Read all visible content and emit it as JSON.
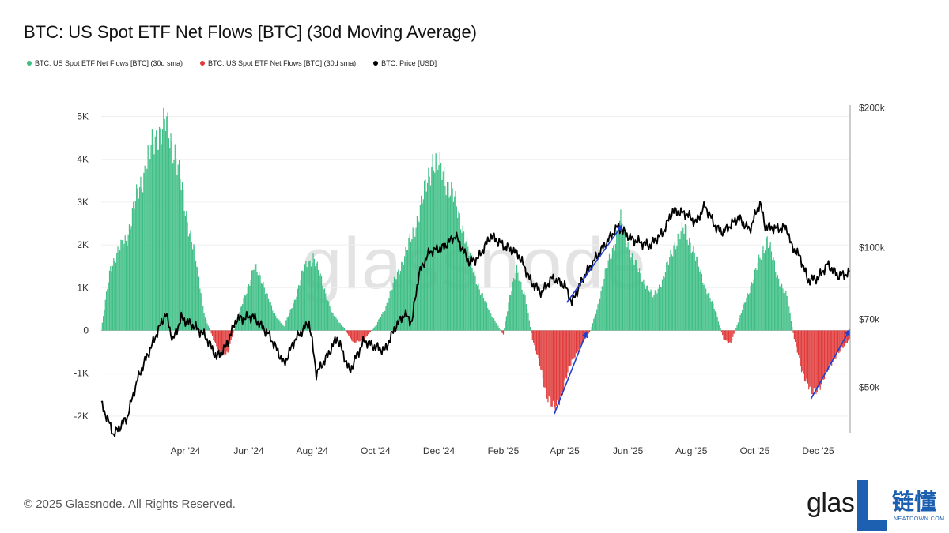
{
  "title": "BTC: US Spot ETF Net Flows [BTC] (30d Moving Average)",
  "legend": [
    {
      "label": "BTC: US Spot ETF Net Flows [BTC] (30d sma)",
      "color": "#3fbf86"
    },
    {
      "label": "BTC: US Spot ETF Net Flows [BTC] (30d sma)",
      "color": "#e03a3a"
    },
    {
      "label": "BTC: Price [USD]",
      "color": "#000000"
    }
  ],
  "watermark": "glassnode",
  "copyright": "© 2025 Glassnode. All Rights Reserved.",
  "brand": {
    "glas": "glas",
    "cn": "链懂",
    "sub": "NEATDOWN.COM"
  },
  "colors": {
    "positive": "#3fbf86",
    "negative": "#e03a3a",
    "price": "#000000",
    "arrow": "#1f3fd1"
  },
  "chart_data": {
    "type": "bar",
    "title": "BTC: US Spot ETF Net Flows [BTC] (30d Moving Average)",
    "x_tick_labels": [
      "Apr '24",
      "Jun '24",
      "Aug '24",
      "Oct '24",
      "Dec '24",
      "Feb '25",
      "Apr '25",
      "Jun '25",
      "Aug '25",
      "Oct '25",
      "Dec '25"
    ],
    "y_left_ticks": [
      "5K",
      "4K",
      "3K",
      "2K",
      "1K",
      "0",
      "-1K",
      "-2K"
    ],
    "y_left_range": [
      -2200,
      5200
    ],
    "y_right_ticks": [
      "$200k",
      "$100k",
      "$70k",
      "$50k"
    ],
    "y_right_scale": "log",
    "x_range": [
      "2024-01-11",
      "2025-12-31"
    ],
    "series": [
      {
        "name": "BTC: US Spot ETF Net Flows [BTC] (30d sma)",
        "kind": "bars",
        "points": [
          [
            "2024-01-11",
            0
          ],
          [
            "2024-01-20",
            1500
          ],
          [
            "2024-02-05",
            2200
          ],
          [
            "2024-02-15",
            3200
          ],
          [
            "2024-02-25",
            4000
          ],
          [
            "2024-03-05",
            4600
          ],
          [
            "2024-03-13",
            4800
          ],
          [
            "2024-03-22",
            4200
          ],
          [
            "2024-04-01",
            2800
          ],
          [
            "2024-04-10",
            1800
          ],
          [
            "2024-04-20",
            300
          ],
          [
            "2024-04-28",
            -200
          ],
          [
            "2024-05-05",
            -600
          ],
          [
            "2024-05-12",
            -500
          ],
          [
            "2024-05-20",
            200
          ],
          [
            "2024-05-31",
            1000
          ],
          [
            "2024-06-06",
            1500
          ],
          [
            "2024-06-15",
            1100
          ],
          [
            "2024-06-25",
            400
          ],
          [
            "2024-07-05",
            100
          ],
          [
            "2024-07-15",
            700
          ],
          [
            "2024-07-25",
            1500
          ],
          [
            "2024-08-02",
            1700
          ],
          [
            "2024-08-10",
            1200
          ],
          [
            "2024-08-20",
            400
          ],
          [
            "2024-09-01",
            50
          ],
          [
            "2024-09-10",
            -300
          ],
          [
            "2024-09-20",
            -200
          ],
          [
            "2024-10-01",
            100
          ],
          [
            "2024-10-10",
            500
          ],
          [
            "2024-10-20",
            1200
          ],
          [
            "2024-10-30",
            1800
          ],
          [
            "2024-11-05",
            2200
          ],
          [
            "2024-11-15",
            3000
          ],
          [
            "2024-11-25",
            4000
          ],
          [
            "2024-12-05",
            3700
          ],
          [
            "2024-12-15",
            3100
          ],
          [
            "2024-12-23",
            2500
          ],
          [
            "2025-01-02",
            1500
          ],
          [
            "2025-01-10",
            900
          ],
          [
            "2025-01-20",
            400
          ],
          [
            "2025-01-27",
            100
          ],
          [
            "2025-02-01",
            -100
          ],
          [
            "2025-02-07",
            800
          ],
          [
            "2025-02-14",
            1400
          ],
          [
            "2025-02-22",
            800
          ],
          [
            "2025-03-01",
            -200
          ],
          [
            "2025-03-08",
            -800
          ],
          [
            "2025-03-15",
            -1500
          ],
          [
            "2025-03-22",
            -1900
          ],
          [
            "2025-03-30",
            -1400
          ],
          [
            "2025-04-08",
            -700
          ],
          [
            "2025-04-18",
            -300
          ],
          [
            "2025-04-26",
            0
          ],
          [
            "2025-05-02",
            500
          ],
          [
            "2025-05-12",
            1500
          ],
          [
            "2025-05-25",
            2550
          ],
          [
            "2025-06-05",
            1700
          ],
          [
            "2025-06-15",
            1200
          ],
          [
            "2025-06-25",
            800
          ],
          [
            "2025-07-05",
            1200
          ],
          [
            "2025-07-15",
            2000
          ],
          [
            "2025-07-26",
            2400
          ],
          [
            "2025-08-05",
            1700
          ],
          [
            "2025-08-15",
            1000
          ],
          [
            "2025-08-25",
            400
          ],
          [
            "2025-09-01",
            -200
          ],
          [
            "2025-09-08",
            -300
          ],
          [
            "2025-09-15",
            200
          ],
          [
            "2025-09-25",
            900
          ],
          [
            "2025-10-05",
            1600
          ],
          [
            "2025-10-13",
            2200
          ],
          [
            "2025-10-22",
            1300
          ],
          [
            "2025-11-01",
            800
          ],
          [
            "2025-11-08",
            -200
          ],
          [
            "2025-11-15",
            -900
          ],
          [
            "2025-11-25",
            -1500
          ],
          [
            "2025-12-05",
            -1200
          ],
          [
            "2025-12-15",
            -700
          ],
          [
            "2025-12-25",
            -400
          ],
          [
            "2025-12-31",
            -200
          ]
        ]
      },
      {
        "name": "BTC: Price [USD]",
        "kind": "line",
        "points": [
          [
            "2024-01-11",
            46000
          ],
          [
            "2024-01-23",
            39500
          ],
          [
            "2024-02-05",
            43000
          ],
          [
            "2024-02-15",
            52000
          ],
          [
            "2024-02-28",
            61000
          ],
          [
            "2024-03-13",
            72000
          ],
          [
            "2024-03-20",
            63000
          ],
          [
            "2024-03-28",
            70500
          ],
          [
            "2024-04-12",
            67000
          ],
          [
            "2024-04-20",
            64500
          ],
          [
            "2024-05-01",
            58000
          ],
          [
            "2024-05-10",
            61000
          ],
          [
            "2024-05-20",
            70000
          ],
          [
            "2024-06-05",
            71000
          ],
          [
            "2024-06-20",
            65000
          ],
          [
            "2024-07-05",
            56000
          ],
          [
            "2024-07-15",
            63000
          ],
          [
            "2024-07-29",
            69000
          ],
          [
            "2024-08-05",
            53500
          ],
          [
            "2024-08-15",
            58000
          ],
          [
            "2024-08-25",
            64000
          ],
          [
            "2024-09-06",
            54000
          ],
          [
            "2024-09-20",
            63000
          ],
          [
            "2024-10-01",
            61000
          ],
          [
            "2024-10-10",
            60000
          ],
          [
            "2024-10-21",
            68000
          ],
          [
            "2024-10-29",
            72000
          ],
          [
            "2024-11-05",
            69000
          ],
          [
            "2024-11-12",
            88000
          ],
          [
            "2024-11-22",
            98000
          ],
          [
            "2024-12-05",
            100000
          ],
          [
            "2024-12-17",
            106000
          ],
          [
            "2024-12-30",
            93000
          ],
          [
            "2025-01-08",
            95000
          ],
          [
            "2025-01-20",
            106000
          ],
          [
            "2025-02-01",
            101000
          ],
          [
            "2025-02-15",
            97000
          ],
          [
            "2025-02-28",
            84000
          ],
          [
            "2025-03-10",
            80000
          ],
          [
            "2025-03-20",
            86000
          ],
          [
            "2025-04-01",
            83000
          ],
          [
            "2025-04-08",
            76000
          ],
          [
            "2025-04-20",
            87000
          ],
          [
            "2025-05-01",
            95000
          ],
          [
            "2025-05-12",
            103000
          ],
          [
            "2025-05-22",
            111000
          ],
          [
            "2025-06-05",
            104000
          ],
          [
            "2025-06-22",
            101000
          ],
          [
            "2025-07-05",
            108000
          ],
          [
            "2025-07-14",
            120000
          ],
          [
            "2025-07-28",
            118000
          ],
          [
            "2025-08-05",
            113000
          ],
          [
            "2025-08-14",
            123000
          ],
          [
            "2025-08-25",
            110000
          ],
          [
            "2025-09-01",
            108000
          ],
          [
            "2025-09-15",
            116000
          ],
          [
            "2025-09-26",
            109000
          ],
          [
            "2025-10-06",
            125000
          ],
          [
            "2025-10-11",
            111000
          ],
          [
            "2025-10-20",
            110000
          ],
          [
            "2025-11-01",
            110000
          ],
          [
            "2025-11-05",
            101000
          ],
          [
            "2025-11-14",
            95000
          ],
          [
            "2025-11-21",
            85000
          ],
          [
            "2025-12-01",
            86000
          ],
          [
            "2025-12-10",
            92000
          ],
          [
            "2025-12-20",
            87000
          ],
          [
            "2025-12-31",
            88000
          ]
        ]
      }
    ],
    "annotations": [
      {
        "type": "arrow",
        "from": [
          "2025-03-22",
          -1950
        ],
        "to": [
          "2025-04-22",
          -50
        ]
      },
      {
        "type": "arrow",
        "from": [
          "2025-04-03",
          650
        ],
        "to": [
          "2025-05-26",
          2450
        ]
      },
      {
        "type": "arrow",
        "from": [
          "2025-11-24",
          -1600
        ],
        "to": [
          "2025-12-31",
          0
        ]
      }
    ]
  }
}
